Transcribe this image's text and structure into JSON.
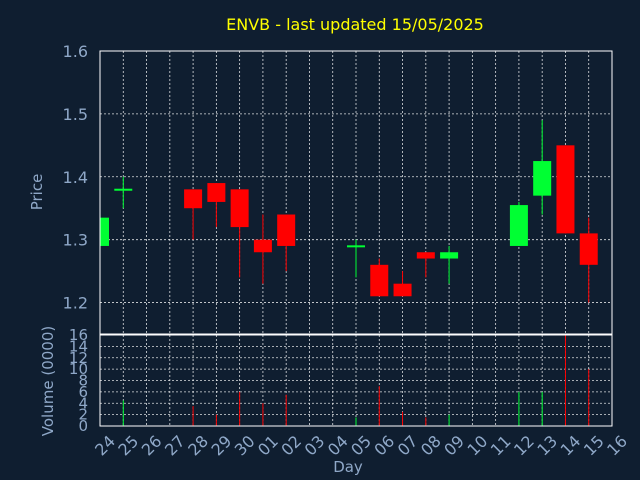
{
  "chart_data": [
    {
      "type": "candlestick",
      "title": "ENVB - last updated 15/05/2025",
      "ylabel": "Price",
      "ylim": [
        1.15,
        1.6
      ],
      "yticks": [
        "1.2",
        "1.3",
        "1.4",
        "1.5",
        "1.6"
      ],
      "grid": true,
      "up_color": "#00ff33",
      "down_color": "#ff0000",
      "categories": [
        "24",
        "25",
        "26",
        "27",
        "28",
        "29",
        "30",
        "01",
        "02",
        "03",
        "04",
        "05",
        "06",
        "07",
        "08",
        "09",
        "10",
        "11",
        "12",
        "13",
        "14",
        "15",
        "16"
      ],
      "candles": [
        {
          "day": "24",
          "open": 1.29,
          "high": 1.335,
          "low": 1.29,
          "close": 1.335
        },
        {
          "day": "25",
          "open": 1.378,
          "high": 1.4,
          "low": 1.35,
          "close": 1.381
        },
        {
          "day": "28",
          "open": 1.38,
          "high": 1.38,
          "low": 1.3,
          "close": 1.35
        },
        {
          "day": "29",
          "open": 1.39,
          "high": 1.39,
          "low": 1.32,
          "close": 1.36
        },
        {
          "day": "30",
          "open": 1.38,
          "high": 1.38,
          "low": 1.24,
          "close": 1.32
        },
        {
          "day": "01",
          "open": 1.3,
          "high": 1.34,
          "low": 1.23,
          "close": 1.28
        },
        {
          "day": "02",
          "open": 1.34,
          "high": 1.34,
          "low": 1.25,
          "close": 1.29
        },
        {
          "day": "05",
          "open": 1.288,
          "high": 1.3,
          "low": 1.24,
          "close": 1.291
        },
        {
          "day": "06",
          "open": 1.26,
          "high": 1.27,
          "low": 1.21,
          "close": 1.21
        },
        {
          "day": "07",
          "open": 1.23,
          "high": 1.25,
          "low": 1.21,
          "close": 1.21
        },
        {
          "day": "08",
          "open": 1.28,
          "high": 1.28,
          "low": 1.24,
          "close": 1.27
        },
        {
          "day": "09",
          "open": 1.27,
          "high": 1.29,
          "low": 1.23,
          "close": 1.28
        },
        {
          "day": "12",
          "open": 1.29,
          "high": 1.36,
          "low": 1.29,
          "close": 1.355
        },
        {
          "day": "13",
          "open": 1.37,
          "high": 1.49,
          "low": 1.34,
          "close": 1.425
        },
        {
          "day": "14",
          "open": 1.45,
          "high": 1.45,
          "low": 1.31,
          "close": 1.31
        },
        {
          "day": "15",
          "open": 1.31,
          "high": 1.335,
          "low": 1.2,
          "close": 1.26
        }
      ]
    },
    {
      "type": "bar",
      "ylabel": "Volume (0000)",
      "xlabel": "Day",
      "ylim": [
        0,
        16
      ],
      "yticks": [
        "0",
        "2",
        "4",
        "6",
        "8",
        "10",
        "12",
        "14",
        "16"
      ],
      "grid": true,
      "categories": [
        "24",
        "25",
        "26",
        "27",
        "28",
        "29",
        "30",
        "01",
        "02",
        "03",
        "04",
        "05",
        "06",
        "07",
        "08",
        "09",
        "10",
        "11",
        "12",
        "13",
        "14",
        "15",
        "16"
      ],
      "values": [
        0,
        4.5,
        0,
        0,
        3.5,
        2,
        6,
        4,
        5.5,
        0,
        0,
        1.5,
        7,
        2.5,
        1.5,
        2,
        0,
        0,
        6,
        6,
        16,
        10,
        0
      ],
      "colors": [
        "#00ff33",
        "#00ff33",
        "#00ff33",
        "#00ff33",
        "#ff0000",
        "#ff0000",
        "#ff0000",
        "#ff0000",
        "#ff0000",
        "#00ff33",
        "#00ff33",
        "#00ff33",
        "#ff0000",
        "#ff0000",
        "#ff0000",
        "#00ff33",
        "#00ff33",
        "#00ff33",
        "#00ff33",
        "#00ff33",
        "#ff0000",
        "#ff0000",
        "#00ff33"
      ]
    }
  ]
}
